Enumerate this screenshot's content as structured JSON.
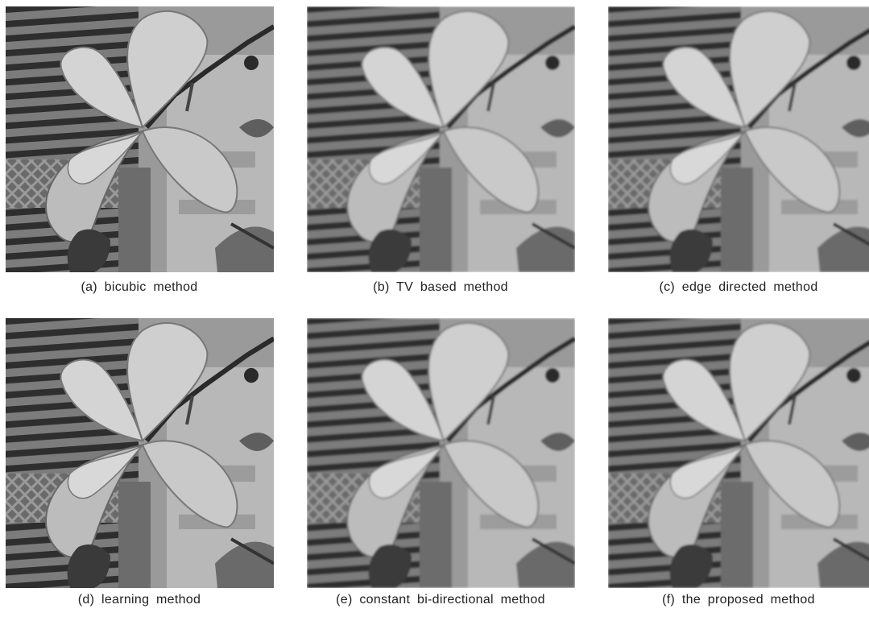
{
  "panels": [
    {
      "caption": "(a) bicubic method"
    },
    {
      "caption": "(b) TV based method"
    },
    {
      "caption": "(c) edge directed method"
    },
    {
      "caption": "(d) learning method"
    },
    {
      "caption": "(e) constant bi-directional method"
    },
    {
      "caption": "(f) the proposed method"
    }
  ]
}
